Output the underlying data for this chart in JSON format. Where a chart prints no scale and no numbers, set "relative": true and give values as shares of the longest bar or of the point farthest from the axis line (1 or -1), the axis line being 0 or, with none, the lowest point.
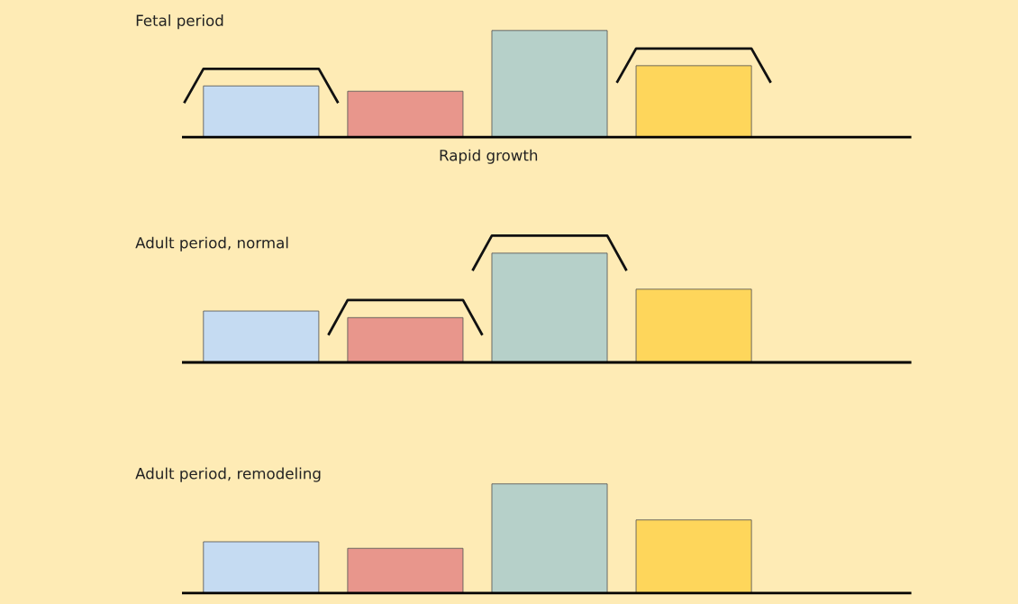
{
  "chart_data": [
    {
      "type": "bar",
      "title": "Fetal period",
      "relative": true,
      "categories": [
        null,
        null,
        null,
        null
      ],
      "values": [
        0.48,
        0.43,
        1,
        0.67
      ],
      "colors": [
        "#c5dbf2",
        "#e8968c",
        "#b6d0c9",
        "#fed65b"
      ],
      "annotations": [
        "Rapid growth"
      ]
    },
    {
      "type": "bar",
      "title": "Adult period, normal",
      "relative": true,
      "categories": [
        null,
        null,
        null,
        null
      ],
      "values": [
        0.47,
        0.41,
        1,
        0.67
      ],
      "colors": [
        "#c5dbf2",
        "#e8968c",
        "#b6d0c9",
        "#fed65b"
      ]
    },
    {
      "type": "bar",
      "title": "Adult period, remodeling",
      "relative": true,
      "categories": [
        null,
        null,
        null,
        null
      ],
      "values": [
        0.47,
        0.41,
        1,
        0.67
      ],
      "colors": [
        "#c5dbf2",
        "#e8968c",
        "#b6d0c9",
        "#fed65b"
      ]
    }
  ]
}
